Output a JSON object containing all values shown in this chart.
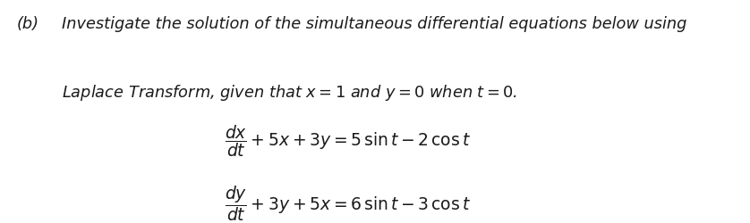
{
  "background_color": "#ffffff",
  "fig_width": 8.38,
  "fig_height": 2.51,
  "dpi": 100,
  "text_color": "#1a1a1a",
  "label_b": "(b)",
  "line1": "Investigate the solution of the simultaneous differential equations below using",
  "line2": "Laplace Transform, given that $x = 1$ and $y = 0$ when $t = 0$.",
  "font_size_text": 12.8,
  "font_size_eq": 13.5
}
